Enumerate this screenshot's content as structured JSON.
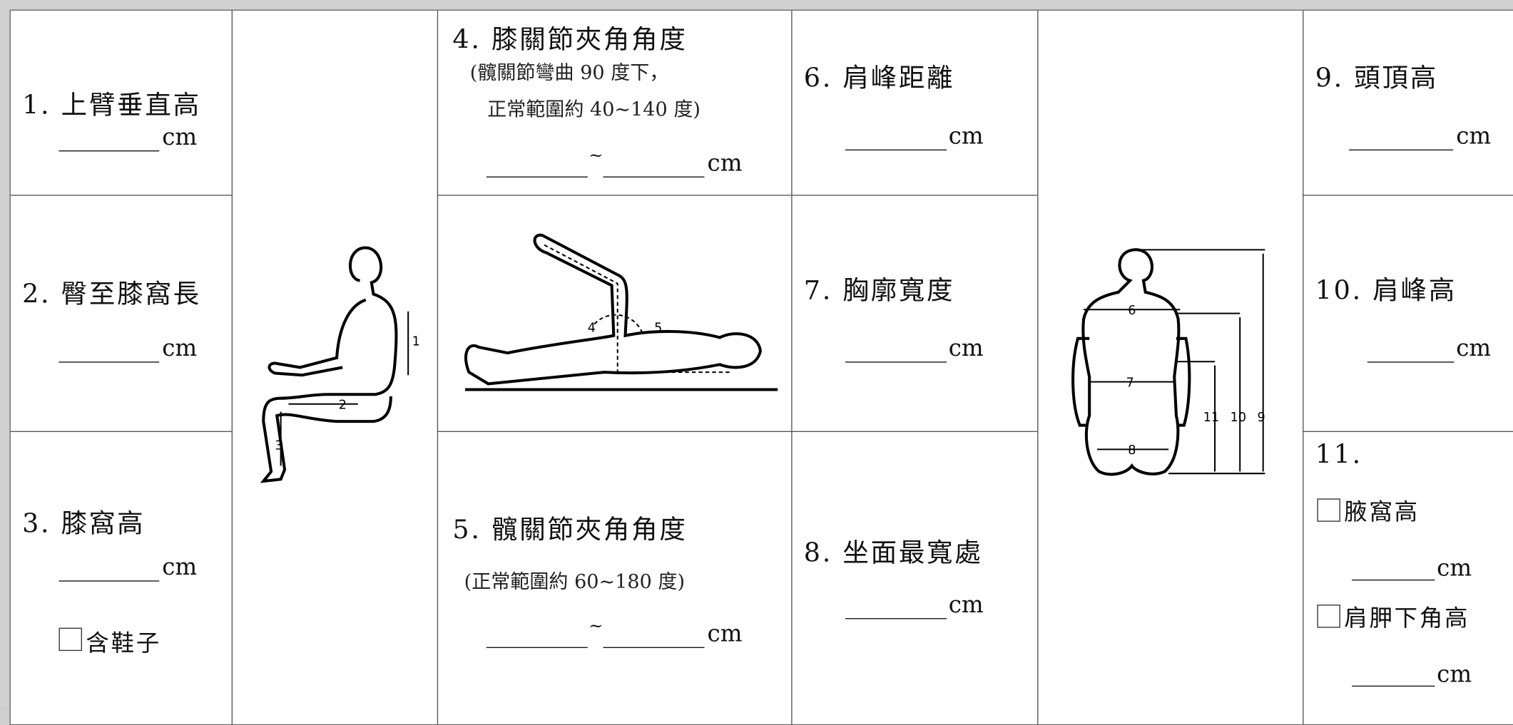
{
  "form": {
    "cells": [
      {
        "label": "1. 上臂垂直高",
        "unit": "cm"
      },
      {
        "label": "2. 臀至膝窩長",
        "unit": "cm"
      },
      {
        "label": "3. 膝窩高",
        "unit": "cm",
        "option": "含鞋子"
      },
      {
        "label": "4. 膝關節夾角角度",
        "note": [
          "(髖關節彎曲 90 度下，",
          "正常範圍約 40~140 度)"
        ],
        "separator": "~",
        "unit": "cm"
      },
      {
        "label": "5. 髖關節夾角角度",
        "note": [
          "(正常範圍約 60~180 度)"
        ],
        "separator": "~",
        "unit": "cm"
      },
      {
        "label": "6. 肩峰距離",
        "unit": "cm"
      },
      {
        "label": "7. 胸廓寬度",
        "unit": "cm"
      },
      {
        "label": "8. 坐面最寬處",
        "unit": "cm"
      },
      {
        "label": "9. 頭頂高",
        "unit": "cm"
      },
      {
        "label": "10. 肩峰高",
        "unit": "cm"
      },
      {
        "label": "11.",
        "options": [
          {
            "label": "腋窩高",
            "unit": "cm"
          },
          {
            "label": "肩胛下角高",
            "unit": "cm"
          }
        ]
      }
    ],
    "figures": {
      "seated": [
        "1",
        "2",
        "3"
      ],
      "supine": [
        "4",
        "5"
      ],
      "back": [
        "6",
        "7",
        "8",
        "11",
        "10",
        "9"
      ]
    }
  }
}
